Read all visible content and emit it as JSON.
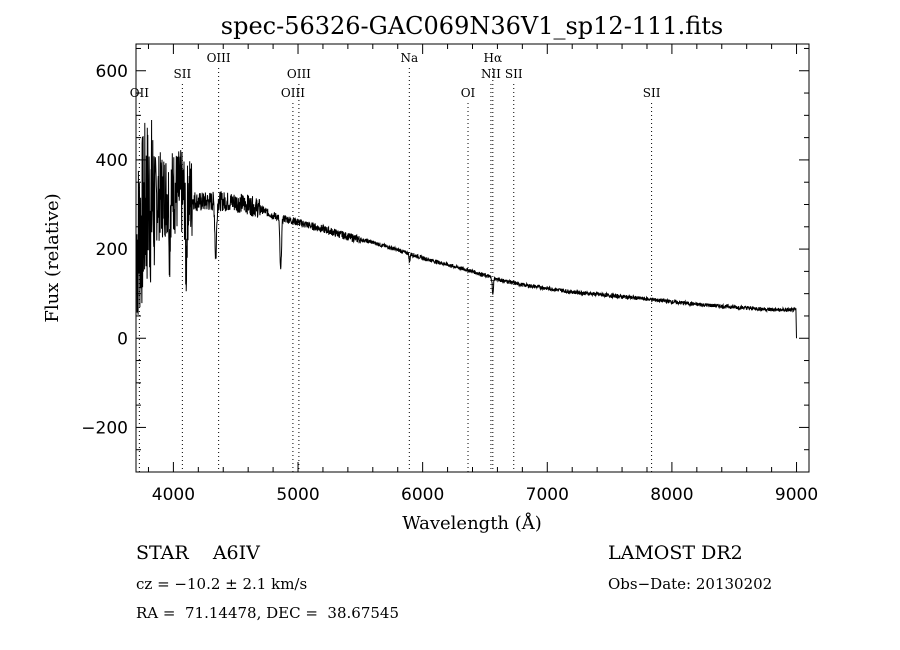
{
  "chart_data": {
    "type": "line",
    "title": "spec-56326-GAC069N36V1_sp12-111.fits",
    "xlabel": "Wavelength (Å)",
    "ylabel": "Flux (relative)",
    "xlim": [
      3700,
      9100
    ],
    "ylim": [
      -300,
      660
    ],
    "xticks": [
      4000,
      5000,
      6000,
      7000,
      8000,
      9000
    ],
    "yticks": [
      -200,
      0,
      200,
      400,
      600
    ],
    "grid": false,
    "continuum_anchors": [
      [
        3700,
        200
      ],
      [
        3780,
        300
      ],
      [
        3900,
        320
      ],
      [
        4000,
        330
      ],
      [
        4100,
        320
      ],
      [
        4200,
        305
      ],
      [
        4350,
        308
      ],
      [
        4500,
        305
      ],
      [
        4600,
        300
      ],
      [
        4700,
        290
      ],
      [
        4800,
        275
      ],
      [
        4900,
        268
      ],
      [
        5000,
        260
      ],
      [
        5200,
        245
      ],
      [
        5400,
        228
      ],
      [
        5600,
        215
      ],
      [
        5800,
        198
      ],
      [
        6000,
        180
      ],
      [
        6200,
        165
      ],
      [
        6400,
        150
      ],
      [
        6600,
        132
      ],
      [
        6800,
        120
      ],
      [
        7000,
        112
      ],
      [
        7200,
        104
      ],
      [
        7500,
        96
      ],
      [
        7800,
        88
      ],
      [
        8000,
        82
      ],
      [
        8200,
        76
      ],
      [
        8500,
        70
      ],
      [
        8800,
        64
      ],
      [
        8990,
        63
      ]
    ],
    "absorption_features": [
      {
        "x": 3970,
        "depth": 110,
        "width": 6
      },
      {
        "x": 4102,
        "depth": 150,
        "width": 8
      },
      {
        "x": 4340,
        "depth": 130,
        "width": 9
      },
      {
        "x": 4861,
        "depth": 120,
        "width": 9
      },
      {
        "x": 5895,
        "depth": 20,
        "width": 5
      },
      {
        "x": 6563,
        "depth": 40,
        "width": 6
      }
    ],
    "spectrum_end": {
      "x": 9000,
      "y": 0
    },
    "lines": [
      {
        "label": "OII",
        "x": 3727,
        "row": 2
      },
      {
        "label": "SII",
        "x": 4072,
        "row": 1
      },
      {
        "label": "OIII",
        "x": 4363,
        "row": 0
      },
      {
        "label": "OIII",
        "x": 4959,
        "row": 2
      },
      {
        "label": "OIII",
        "x": 5007,
        "row": 1
      },
      {
        "label": "Na",
        "x": 5893,
        "row": 0
      },
      {
        "label": "OI",
        "x": 6364,
        "row": 2
      },
      {
        "label": "Hα",
        "x": 6563,
        "row": 0
      },
      {
        "label": "NII",
        "x": 6548,
        "row": 1
      },
      {
        "label": "SII",
        "x": 6731,
        "row": 1
      },
      {
        "label": "SII",
        "x": 7837,
        "row": 2
      }
    ]
  },
  "info": {
    "class_line": "STAR    A6IV",
    "survey": "LAMOST DR2",
    "cz_line": "cz = −10.2 ± 2.1 km/s",
    "obs_date": "Obs−Date: 20130202",
    "radec_line": "RA =  71.14478, DEC =  38.67545"
  }
}
